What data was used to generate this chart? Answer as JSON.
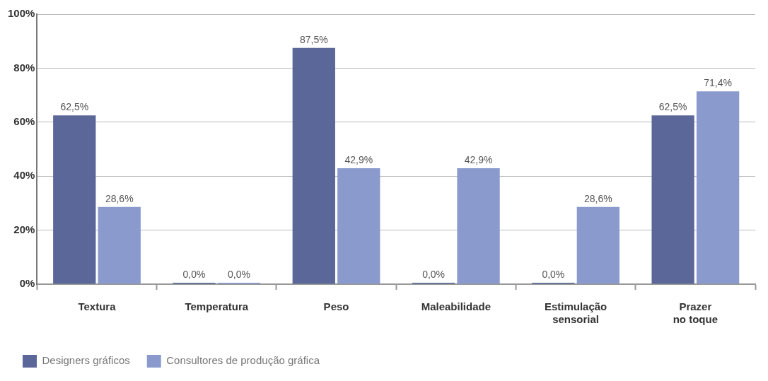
{
  "chart_data": {
    "type": "bar",
    "categories": [
      "Textura",
      "Temperatura",
      "Peso",
      "Maleabilidade",
      "Estimulação sensorial",
      "Prazer no toque"
    ],
    "series": [
      {
        "name": "Designers gráficos",
        "color": "#5c6799",
        "values": [
          62.5,
          0,
          87.5,
          0,
          0,
          62.5
        ],
        "value_labels": [
          "62,5%",
          "0,0%",
          "87,5%",
          "0,0%",
          "0,0%",
          "62,5%"
        ]
      },
      {
        "name": "Consultores de produção gráfica",
        "color": "#8a9acd",
        "values": [
          28.6,
          0,
          42.9,
          42.9,
          28.6,
          71.4
        ],
        "value_labels": [
          "28,6%",
          "0,0%",
          "42,9%",
          "42,9%",
          "28,6%",
          "71,4%"
        ]
      }
    ],
    "ylim": [
      0,
      100
    ],
    "yticks": [
      {
        "value": 0,
        "label": "0%"
      },
      {
        "value": 20,
        "label": "20%"
      },
      {
        "value": 40,
        "label": "40%"
      },
      {
        "value": 60,
        "label": "60%"
      },
      {
        "value": 80,
        "label": "80%"
      },
      {
        "value": 100,
        "label": "100%"
      }
    ],
    "grid": "y",
    "legend": "bottom left"
  }
}
